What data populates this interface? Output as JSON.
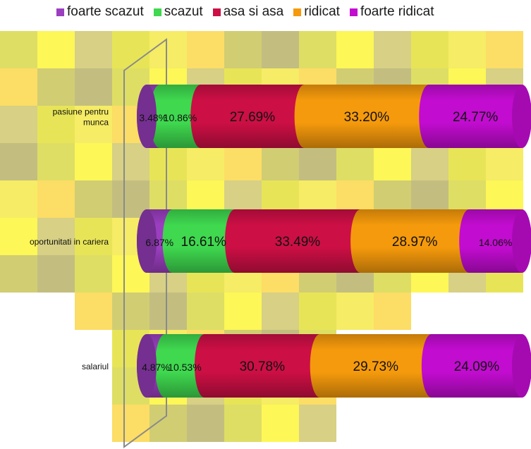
{
  "chart_data": {
    "type": "bar",
    "orientation": "horizontal",
    "stacked": true,
    "percent": true,
    "legend_position": "top",
    "categories": [
      "pasiune pentru munca",
      "oportunitati in cariera",
      "salariul"
    ],
    "category_lines": [
      [
        "pasiune pentru",
        "munca"
      ],
      [
        "oportunitati in cariera"
      ],
      [
        "salariul"
      ]
    ],
    "series": [
      {
        "name": "foarte scazut",
        "color": "#9b3fc0",
        "values": [
          3.48,
          6.87,
          4.87
        ],
        "labels": [
          "3.48%",
          "6.87%",
          "4.87%"
        ]
      },
      {
        "name": "scazut",
        "color": "#3fd84f",
        "values": [
          10.86,
          16.61,
          10.53
        ],
        "labels": [
          "10.86%",
          "16.61%",
          "10.53%"
        ]
      },
      {
        "name": "asa si asa",
        "color": "#cc0f45",
        "values": [
          27.69,
          33.49,
          30.78
        ],
        "labels": [
          "27.69%",
          "33.49%",
          "30.78%"
        ]
      },
      {
        "name": "ridicat",
        "color": "#f59a0c",
        "values": [
          33.2,
          28.97,
          29.73
        ],
        "labels": [
          "33.20%",
          "28.97%",
          "29.73%"
        ]
      },
      {
        "name": "foarte ridicat",
        "color": "#c20cd0",
        "values": [
          24.77,
          14.06,
          24.09
        ],
        "labels": [
          "24.77%",
          "14.06%",
          "24.09%"
        ]
      }
    ],
    "xlim": [
      0,
      100
    ]
  }
}
